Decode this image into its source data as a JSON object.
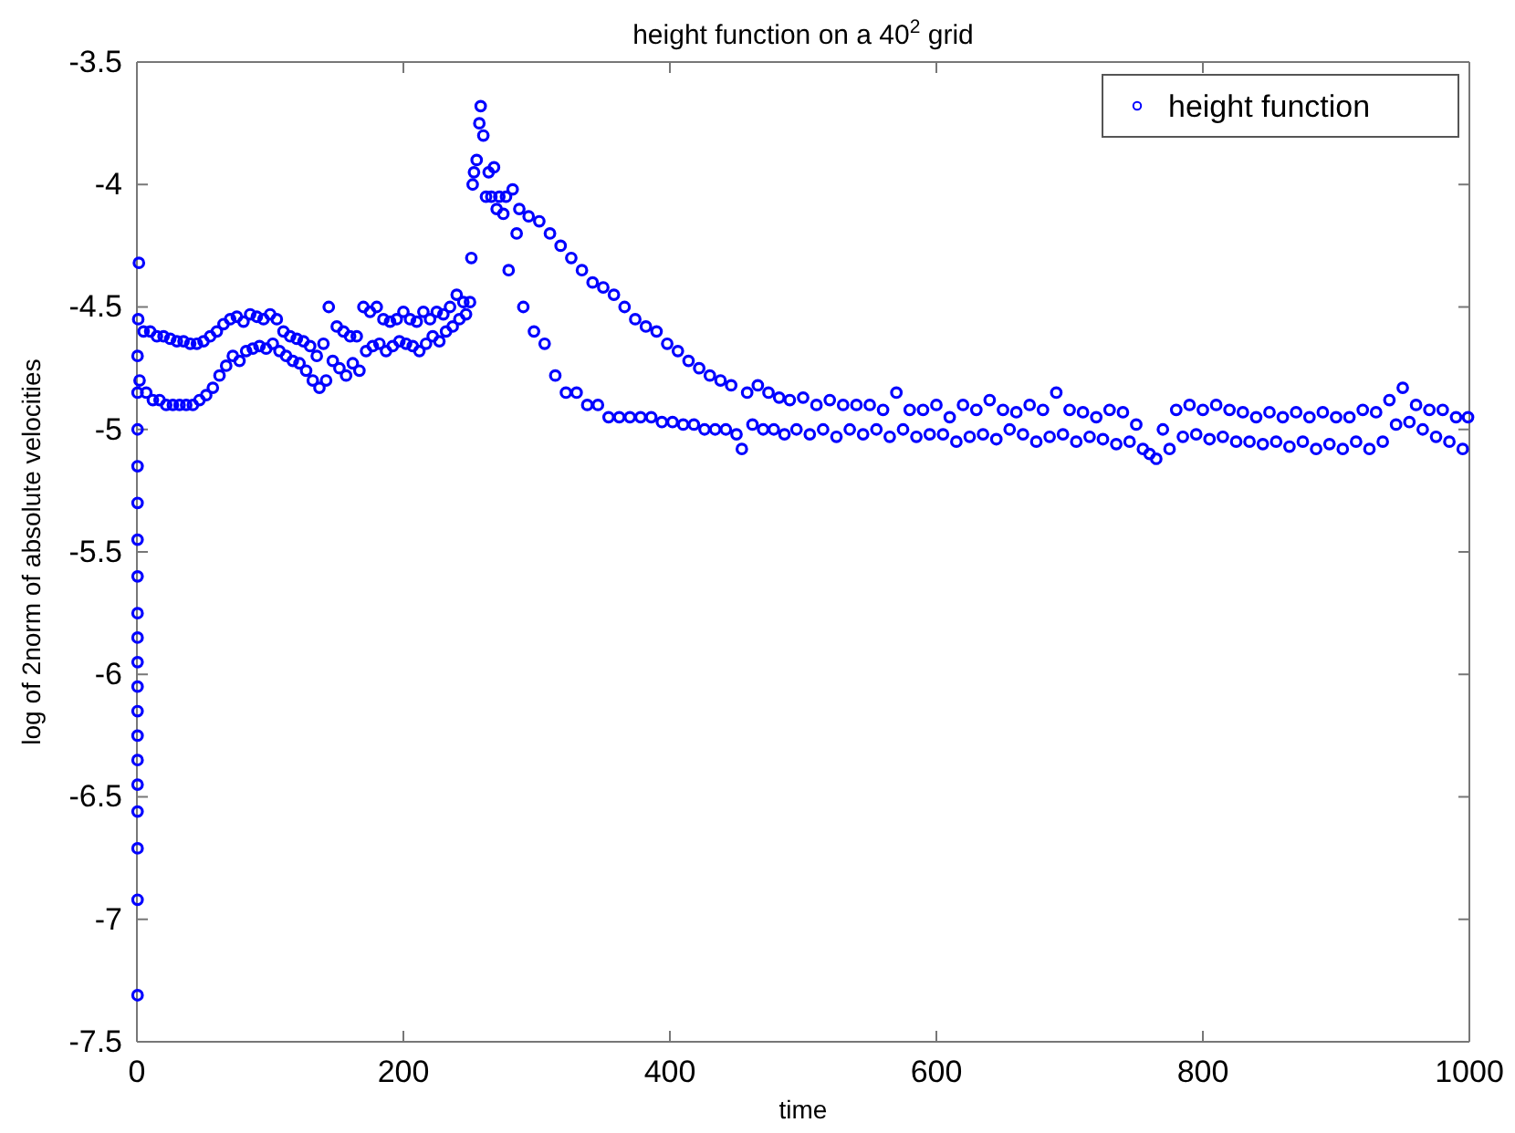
{
  "chart_data": {
    "type": "scatter",
    "title": "height function on a 40$^{2}$ grid",
    "xlabel": "time",
    "ylabel": "log of 2norm of absolute velocities",
    "xlim": [
      0,
      1000
    ],
    "xticks": [
      0,
      200,
      400,
      600,
      800,
      1000
    ],
    "ylim": [
      -7.5,
      -3.5
    ],
    "yticks": [
      -7.5,
      -7,
      -6.5,
      -6,
      -5.5,
      -5,
      -4.5,
      -4,
      -3.5
    ],
    "grid": false,
    "legend": "top right",
    "marker": "circle",
    "series": [
      {
        "name": "height function",
        "color": "#0000ff",
        "x": [
          0.5,
          0.5,
          0.5,
          0.5,
          0.5,
          0.5,
          0.5,
          0.5,
          0.5,
          0.5,
          0.5,
          0.5,
          0.5,
          0.5,
          0.5,
          0.5,
          0.5,
          0.5,
          0.5,
          1,
          1.5,
          2,
          5,
          7,
          10,
          12,
          15,
          17,
          20,
          22,
          25,
          27,
          30,
          32,
          35,
          37,
          40,
          42,
          45,
          47,
          50,
          52,
          55,
          57,
          60,
          62,
          65,
          67,
          70,
          72,
          75,
          77,
          80,
          82,
          85,
          87,
          90,
          92,
          95,
          97,
          100,
          102,
          105,
          107,
          110,
          112,
          115,
          117,
          120,
          122,
          125,
          127,
          130,
          132,
          135,
          137,
          140,
          142,
          144,
          147,
          150,
          152,
          155,
          157,
          160,
          162,
          165,
          167,
          170,
          172,
          175,
          177,
          180,
          182,
          185,
          187,
          190,
          192,
          195,
          197,
          200,
          202,
          205,
          207,
          210,
          212,
          215,
          217,
          220,
          222,
          225,
          227,
          230,
          232,
          235,
          237,
          240,
          242,
          245,
          247,
          250,
          251,
          252,
          253,
          255,
          257,
          258,
          260,
          262,
          264,
          266,
          268,
          270,
          272,
          275,
          277,
          279,
          282,
          285,
          287,
          290,
          294,
          298,
          302,
          306,
          310,
          314,
          318,
          322,
          326,
          330,
          334,
          338,
          342,
          346,
          350,
          354,
          358,
          362,
          366,
          370,
          374,
          378,
          382,
          386,
          390,
          394,
          398,
          402,
          406,
          410,
          414,
          418,
          422,
          426,
          430,
          434,
          438,
          442,
          446,
          450,
          454,
          458,
          462,
          466,
          470,
          474,
          478,
          482,
          486,
          490,
          495,
          500,
          505,
          510,
          515,
          520,
          525,
          530,
          535,
          540,
          545,
          550,
          555,
          560,
          565,
          570,
          575,
          580,
          585,
          590,
          595,
          600,
          605,
          610,
          615,
          620,
          625,
          630,
          635,
          640,
          645,
          650,
          655,
          660,
          665,
          670,
          675,
          680,
          685,
          690,
          695,
          700,
          705,
          710,
          715,
          720,
          725,
          730,
          735,
          740,
          745,
          750,
          755,
          760,
          765,
          770,
          775,
          780,
          785,
          790,
          795,
          800,
          805,
          810,
          815,
          820,
          825,
          830,
          835,
          840,
          845,
          850,
          855,
          860,
          865,
          870,
          875,
          880,
          885,
          890,
          895,
          900,
          905,
          910,
          915,
          920,
          925,
          930,
          935,
          940,
          945,
          950,
          955,
          960,
          965,
          970,
          975,
          980,
          985,
          990,
          995,
          999
        ],
        "values": [
          -7.31,
          -6.92,
          -6.71,
          -6.56,
          -6.45,
          -6.35,
          -6.25,
          -6.15,
          -6.05,
          -5.95,
          -5.85,
          -5.75,
          -5.6,
          -5.45,
          -5.3,
          -5.15,
          -5.0,
          -4.85,
          -4.7,
          -4.55,
          -4.32,
          -4.8,
          -4.6,
          -4.85,
          -4.6,
          -4.88,
          -4.62,
          -4.88,
          -4.62,
          -4.9,
          -4.63,
          -4.9,
          -4.64,
          -4.9,
          -4.64,
          -4.9,
          -4.65,
          -4.9,
          -4.65,
          -4.88,
          -4.64,
          -4.86,
          -4.62,
          -4.83,
          -4.6,
          -4.78,
          -4.57,
          -4.74,
          -4.55,
          -4.7,
          -4.54,
          -4.72,
          -4.56,
          -4.68,
          -4.53,
          -4.67,
          -4.54,
          -4.66,
          -4.55,
          -4.67,
          -4.53,
          -4.65,
          -4.55,
          -4.68,
          -4.6,
          -4.7,
          -4.62,
          -4.72,
          -4.63,
          -4.73,
          -4.64,
          -4.76,
          -4.66,
          -4.8,
          -4.7,
          -4.83,
          -4.65,
          -4.8,
          -4.5,
          -4.72,
          -4.58,
          -4.75,
          -4.6,
          -4.78,
          -4.62,
          -4.73,
          -4.62,
          -4.76,
          -4.5,
          -4.68,
          -4.52,
          -4.66,
          -4.5,
          -4.65,
          -4.55,
          -4.68,
          -4.56,
          -4.66,
          -4.55,
          -4.64,
          -4.52,
          -4.65,
          -4.55,
          -4.66,
          -4.56,
          -4.68,
          -4.52,
          -4.65,
          -4.55,
          -4.62,
          -4.52,
          -4.64,
          -4.53,
          -4.6,
          -4.5,
          -4.58,
          -4.45,
          -4.55,
          -4.48,
          -4.53,
          -4.48,
          -4.3,
          -4.0,
          -3.95,
          -3.9,
          -3.75,
          -3.68,
          -3.8,
          -4.05,
          -3.95,
          -4.05,
          -3.93,
          -4.1,
          -4.05,
          -4.12,
          -4.05,
          -4.35,
          -4.02,
          -4.2,
          -4.1,
          -4.5,
          -4.13,
          -4.6,
          -4.15,
          -4.65,
          -4.2,
          -4.78,
          -4.25,
          -4.85,
          -4.3,
          -4.85,
          -4.35,
          -4.9,
          -4.4,
          -4.9,
          -4.42,
          -4.95,
          -4.45,
          -4.95,
          -4.5,
          -4.95,
          -4.55,
          -4.95,
          -4.58,
          -4.95,
          -4.6,
          -4.97,
          -4.65,
          -4.97,
          -4.68,
          -4.98,
          -4.72,
          -4.98,
          -4.75,
          -5.0,
          -4.78,
          -5.0,
          -4.8,
          -5.0,
          -4.82,
          -5.02,
          -5.08,
          -4.85,
          -4.98,
          -4.82,
          -5.0,
          -4.85,
          -5.0,
          -4.87,
          -5.02,
          -4.88,
          -5.0,
          -4.87,
          -5.02,
          -4.9,
          -5.0,
          -4.88,
          -5.03,
          -4.9,
          -5.0,
          -4.9,
          -5.02,
          -4.9,
          -5.0,
          -4.92,
          -5.03,
          -4.85,
          -5.0,
          -4.92,
          -5.03,
          -4.92,
          -5.02,
          -4.9,
          -5.02,
          -4.95,
          -5.05,
          -4.9,
          -5.03,
          -4.92,
          -5.02,
          -4.88,
          -5.04,
          -4.92,
          -5.0,
          -4.93,
          -5.02,
          -4.9,
          -5.05,
          -4.92,
          -5.03,
          -4.85,
          -5.02,
          -4.92,
          -5.05,
          -4.93,
          -5.03,
          -4.95,
          -5.04,
          -4.92,
          -5.06,
          -4.93,
          -5.05,
          -4.98,
          -5.08,
          -5.1,
          -5.12,
          -5.0,
          -5.08,
          -4.92,
          -5.03,
          -4.9,
          -5.02,
          -4.92,
          -5.04,
          -4.9,
          -5.03,
          -4.92,
          -5.05,
          -4.93,
          -5.05,
          -4.95,
          -5.06,
          -4.93,
          -5.05,
          -4.95,
          -5.07,
          -4.93,
          -5.05,
          -4.95,
          -5.08,
          -4.93,
          -5.06,
          -4.95,
          -5.08,
          -4.95,
          -5.05,
          -4.92,
          -5.08,
          -4.93,
          -5.05,
          -4.88,
          -4.98,
          -4.83,
          -4.97,
          -4.9,
          -5.0,
          -4.92,
          -5.03,
          -4.92,
          -5.05,
          -4.95,
          -5.08,
          -4.95
        ]
      }
    ]
  }
}
